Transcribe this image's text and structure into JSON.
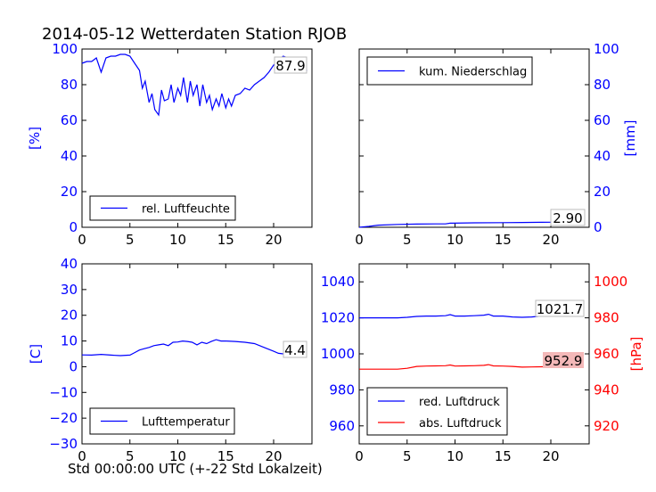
{
  "title": "2014-05-12 Wetterdaten Station RJOB",
  "xlabel": "Std 00:00:00 UTC (+-22 Std Lokalzeit)",
  "colors": {
    "primary": "#0000ff",
    "secondary": "#ff0000",
    "value_box_red": "#f4b8b8"
  },
  "chart_data": [
    {
      "type": "line",
      "panel": "top-left",
      "ylabel": "[%]",
      "xlim": [
        0,
        24
      ],
      "ylim": [
        0,
        100
      ],
      "xticks": [
        0,
        5,
        10,
        15,
        20
      ],
      "yticks": [
        0,
        20,
        40,
        60,
        80,
        100
      ],
      "legend": {
        "position": "lower-left",
        "entries": [
          "rel. Luftfeuchte"
        ]
      },
      "value_label": "87.9",
      "series": [
        {
          "name": "rel. Luftfeuchte",
          "color": "#0000ff",
          "x": [
            0,
            0.5,
            1,
            1.5,
            2,
            2.5,
            3,
            3.5,
            4,
            4.5,
            5,
            5.5,
            6,
            6.3,
            6.6,
            7,
            7.3,
            7.6,
            8,
            8.3,
            8.6,
            9,
            9.3,
            9.6,
            10,
            10.3,
            10.6,
            11,
            11.3,
            11.6,
            12,
            12.3,
            12.6,
            13,
            13.3,
            13.6,
            14,
            14.3,
            14.6,
            15,
            15.3,
            15.6,
            16,
            16.5,
            17,
            17.5,
            18,
            18.5,
            19,
            19.5,
            20,
            20.5,
            21,
            21.5,
            22,
            22.5,
            23,
            23.5
          ],
          "y": [
            92,
            93,
            93,
            95,
            87,
            95,
            96,
            96,
            97,
            97,
            96,
            92,
            88,
            78,
            82,
            70,
            75,
            66,
            63,
            77,
            71,
            72,
            80,
            70,
            78,
            74,
            84,
            70,
            82,
            74,
            80,
            68,
            80,
            70,
            74,
            66,
            72,
            68,
            75,
            67,
            72,
            68,
            74,
            75,
            78,
            77,
            80,
            82,
            84,
            87,
            91,
            94,
            96,
            95,
            88,
            87,
            88,
            88
          ]
        }
      ]
    },
    {
      "type": "line",
      "panel": "top-right",
      "ylabel": "[mm]",
      "xlim": [
        0,
        24
      ],
      "ylim": [
        0,
        100
      ],
      "xticks": [
        0,
        5,
        10,
        15,
        20
      ],
      "yticks": [
        0,
        20,
        40,
        60,
        80,
        100
      ],
      "legend": {
        "position": "upper-left",
        "entries": [
          "kum. Niederschlag"
        ]
      },
      "value_label": "2.90",
      "series": [
        {
          "name": "kum. Niederschlag",
          "color": "#0000ff",
          "x": [
            0,
            1,
            2,
            4,
            6,
            8,
            9,
            9.5,
            12,
            15,
            17,
            19,
            20,
            22,
            23
          ],
          "y": [
            0,
            0.5,
            1.2,
            1.6,
            1.8,
            1.9,
            1.9,
            2.3,
            2.5,
            2.6,
            2.7,
            2.8,
            2.85,
            2.9,
            2.9
          ]
        }
      ]
    },
    {
      "type": "line",
      "panel": "bottom-left",
      "ylabel": "[C]",
      "xlim": [
        0,
        24
      ],
      "ylim": [
        -30,
        40
      ],
      "xticks": [
        0,
        5,
        10,
        15,
        20
      ],
      "yticks": [
        -30,
        -20,
        -10,
        0,
        10,
        20,
        30,
        40
      ],
      "legend": {
        "position": "lower-left",
        "entries": [
          "Lufttemperatur"
        ]
      },
      "value_label": "4.4",
      "series": [
        {
          "name": "Lufttemperatur",
          "color": "#0000ff",
          "x": [
            0,
            1,
            2,
            3,
            4,
            5,
            5.5,
            6,
            6.5,
            7,
            7.5,
            8,
            8.5,
            9,
            9.5,
            10,
            10.5,
            11,
            11.5,
            12,
            12.5,
            13,
            13.5,
            14,
            14.5,
            15,
            16,
            17,
            18,
            19,
            20,
            20.5,
            21,
            22,
            23
          ],
          "y": [
            4.6,
            4.5,
            4.8,
            4.5,
            4.3,
            4.5,
            5.5,
            6.5,
            7,
            7.5,
            8.2,
            8.5,
            8.8,
            8.2,
            9.5,
            9.6,
            10,
            9.8,
            9.5,
            8.5,
            9.5,
            9,
            9.8,
            10.5,
            10,
            10,
            9.8,
            9.5,
            9,
            7.5,
            6,
            5.2,
            5,
            4.8,
            4.4
          ]
        }
      ]
    },
    {
      "type": "line",
      "panel": "bottom-right",
      "ylabel": "[hPa]",
      "xlim": [
        0,
        24
      ],
      "ylim_left": [
        950,
        1050
      ],
      "ylim_right": [
        910,
        1010
      ],
      "xticks": [
        0,
        5,
        10,
        15,
        20
      ],
      "yticks_left": [
        960,
        980,
        1000,
        1020,
        1040
      ],
      "yticks_right": [
        920,
        940,
        960,
        980,
        1000
      ],
      "legend": {
        "position": "lower-left",
        "entries": [
          "red. Luftdruck",
          "abs. Luftdruck"
        ]
      },
      "value_labels": [
        "1021.7",
        "952.9"
      ],
      "series": [
        {
          "name": "red. Luftdruck",
          "color": "#0000ff",
          "axis": "left",
          "x": [
            0,
            2,
            4,
            5,
            6,
            7,
            8,
            9,
            9.5,
            10,
            11,
            12,
            13,
            13.5,
            14,
            15,
            16,
            17,
            18,
            19,
            20,
            21,
            22,
            23
          ],
          "y": [
            1020,
            1020,
            1020,
            1020.3,
            1020.8,
            1021,
            1021,
            1021.2,
            1021.8,
            1021,
            1021,
            1021.2,
            1021.5,
            1022,
            1021,
            1021,
            1020.5,
            1020.3,
            1020.5,
            1021,
            1021.3,
            1021.5,
            1021.6,
            1021.7
          ]
        },
        {
          "name": "abs. Luftdruck",
          "color": "#ff0000",
          "axis": "right",
          "x": [
            0,
            2,
            4,
            5,
            6,
            7,
            8,
            9,
            9.5,
            10,
            11,
            12,
            13,
            13.5,
            14,
            15,
            16,
            17,
            18,
            19,
            20,
            21,
            22,
            23
          ],
          "y": [
            951.5,
            951.5,
            951.5,
            952,
            953,
            953.2,
            953.3,
            953.4,
            953.8,
            953.2,
            953.3,
            953.4,
            953.6,
            954,
            953.3,
            953.2,
            953,
            952.6,
            952.7,
            952.8,
            952.9,
            952.9,
            952.9,
            952.9
          ]
        }
      ]
    }
  ]
}
